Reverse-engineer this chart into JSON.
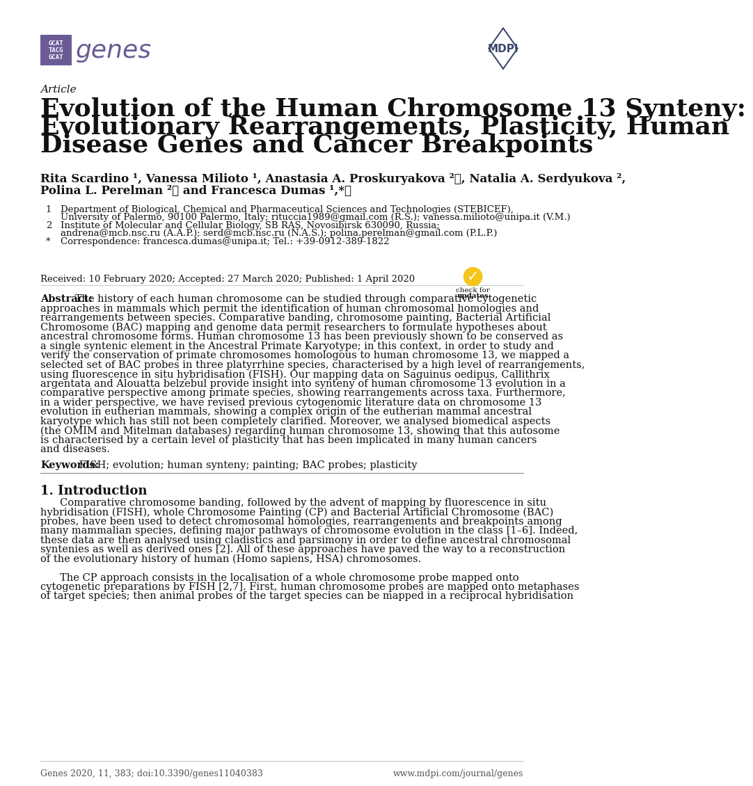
{
  "title_line1": "Evolution of the Human Chromosome 13 Synteny:",
  "title_line2": "Evolutionary Rearrangements, Plasticity, Human",
  "title_line3": "Disease Genes and Cancer Breakpoints",
  "article_label": "Article",
  "authors_line1": "Rita Scardino ¹, Vanessa Milioto ¹, Anastasia A. Proskuryakova ²ⓘ, Natalia A. Serdyukova ²,",
  "authors_line2": "Polina L. Perelman ²ⓘ and Francesca Dumas ¹,*ⓘ",
  "affil1a": "Department of Biological, Chemical and Pharmaceutical Sciences and Technologies (STEBICEF),",
  "affil1b": "University of Palermo, 90100 Palermo, Italy; rituccia1989@gmail.com (R.S.); vanessa.milioto@unipa.it (V.M.)",
  "affil2a": "Institute of Molecular and Cellular Biology, SB RAS, Novosibirsk 630090, Russia;",
  "affil2b": "andrena@mcb.nsc.ru (A.A.P.); serd@mcb.nsc.ru (N.A.S.); polina.perelman@gmail.com (P.L.P.)",
  "affil3": "Correspondence: francesca.dumas@unipa.it; Tel.: +39-0912-389-1822",
  "received": "Received: 10 February 2020; Accepted: 27 March 2020; Published: 1 April 2020",
  "abstract_lines": [
    "Abstract: The history of each human chromosome can be studied through comparative cytogenetic",
    "approaches in mammals which permit the identification of human chromosomal homologies and",
    "rearrangements between species. Comparative banding, chromosome painting, Bacterial Artificial",
    "Chromosome (BAC) mapping and genome data permit researchers to formulate hypotheses about",
    "ancestral chromosome forms. Human chromosome 13 has been previously shown to be conserved as",
    "a single syntenic element in the Ancestral Primate Karyotype; in this context, in order to study and",
    "verify the conservation of primate chromosomes homologous to human chromosome 13, we mapped a",
    "selected set of BAC probes in three platyrrhine species, characterised by a high level of rearrangements,",
    "using fluorescence in situ hybridisation (FISH). Our mapping data on Saguinus oedipus, Callithrix",
    "argentata and Alouatta belzebul provide insight into synteny of human chromosome 13 evolution in a",
    "comparative perspective among primate species, showing rearrangements across taxa. Furthermore,",
    "in a wider perspective, we have revised previous cytogenomic literature data on chromosome 13",
    "evolution in eutherian mammals, showing a complex origin of the eutherian mammal ancestral",
    "karyotype which has still not been completely clarified. Moreover, we analysed biomedical aspects",
    "(the OMIM and Mitelman databases) regarding human chromosome 13, showing that this autosome",
    "is characterised by a certain level of plasticity that has been implicated in many human cancers",
    "and diseases."
  ],
  "keywords_label": "Keywords:",
  "keywords_text": " FISH; evolution; human synteny; painting; BAC probes; plasticity",
  "section1_title": "1. Introduction",
  "intro_lines": [
    "Comparative chromosome banding, followed by the advent of mapping by fluorescence in situ",
    "hybridisation (FISH), whole Chromosome Painting (CP) and Bacterial Artificial Chromosome (BAC)",
    "probes, have been used to detect chromosomal homologies, rearrangements and breakpoints among",
    "many mammalian species, defining major pathways of chromosome evolution in the class [1–6]. Indeed,",
    "these data are then analysed using cladistics and parsimony in order to define ancestral chromosomal",
    "syntenies as well as derived ones [2]. All of these approaches have paved the way to a reconstruction",
    "of the evolutionary history of human (Homo sapiens, HSA) chromosomes.",
    "",
    "The CP approach consists in the localisation of a whole chromosome probe mapped onto",
    "cytogenetic preparations by FISH [2,7]. First, human chromosome probes are mapped onto metaphases",
    "of target species; then animal probes of the target species can be mapped in a reciprocal hybridisation"
  ],
  "footer_left": "Genes 2020, 11, 383; doi:10.3390/genes11040383",
  "footer_right": "www.mdpi.com/journal/genes",
  "genes_logo_color": "#6B5B95",
  "mdpi_color": "#3B4A6B",
  "background_color": "#ffffff",
  "text_color": "#111111",
  "separator_color": "#cccccc"
}
